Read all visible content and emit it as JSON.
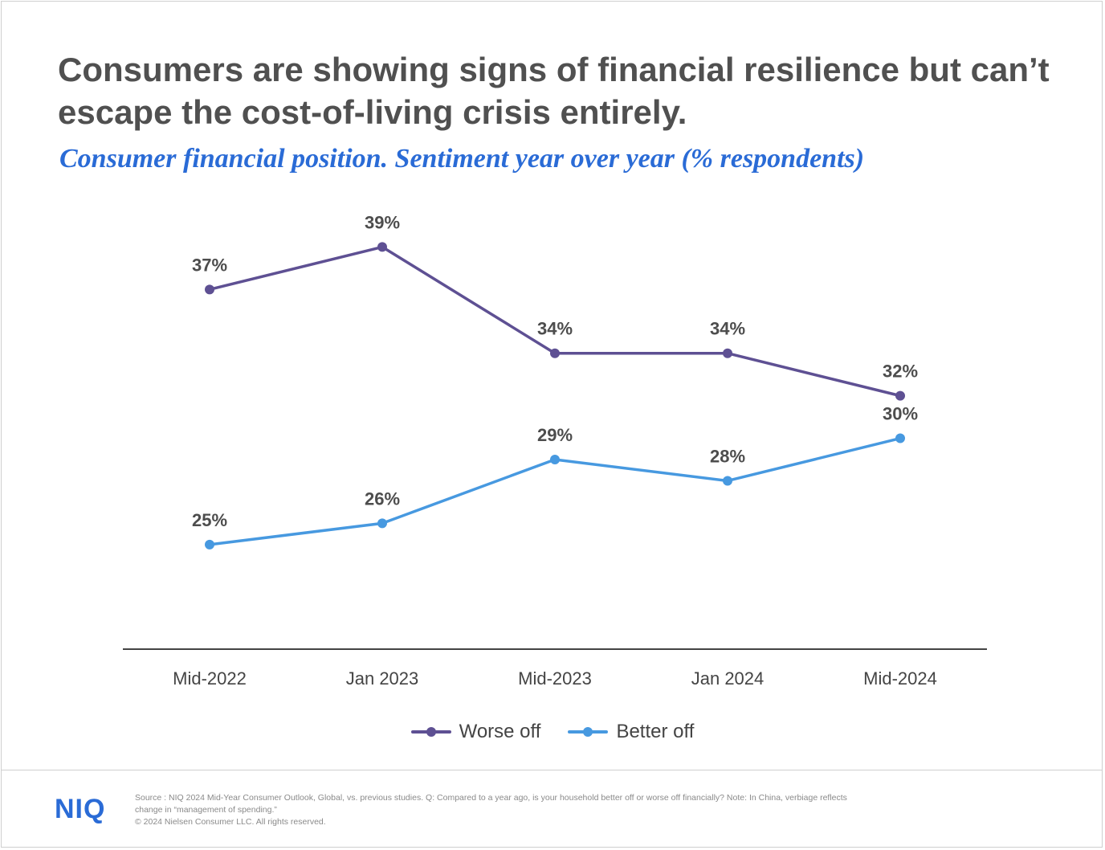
{
  "title": "Consumers are showing signs of financial resilience but can’t escape the cost-of-living crisis entirely.",
  "subtitle": "Consumer financial position. Sentiment year over year (% respondents)",
  "colors": {
    "title": "#505050",
    "subtitle": "#2a6bd6",
    "worse_off": "#5e5093",
    "better_off": "#4799e0",
    "axis": "#444444",
    "label": "#4d4d4d"
  },
  "chart_data": {
    "type": "line",
    "x": [
      "Mid-2022",
      "Jan 2023",
      "Mid-2023",
      "Jan 2024",
      "Mid-2024"
    ],
    "series": [
      {
        "name": "Worse off",
        "values": [
          37,
          39,
          34,
          34,
          32
        ],
        "labels": [
          "37%",
          "39%",
          "34%",
          "34%",
          "32%"
        ],
        "color": "#5e5093"
      },
      {
        "name": "Better off",
        "values": [
          25,
          26,
          29,
          28,
          30
        ],
        "labels": [
          "25%",
          "26%",
          "29%",
          "28%",
          "30%"
        ],
        "color": "#4799e0"
      }
    ],
    "ylim": [
      17,
      41
    ],
    "grid": false,
    "legend": "bottom-center",
    "data_labels": true
  },
  "legend": {
    "worse_off": "Worse off",
    "better_off": "Better off"
  },
  "footer": {
    "logo": "NIQ",
    "source_line1": "Source : NIQ 2024 Mid-Year Consumer Outlook, Global, vs. previous studies. Q: Compared to a year ago, is your household better off or worse off financially? Note: In China, verbiage reflects",
    "source_line2": "change in “management of spending.”",
    "copyright": "© 2024 Nielsen Consumer LLC. All rights reserved."
  }
}
